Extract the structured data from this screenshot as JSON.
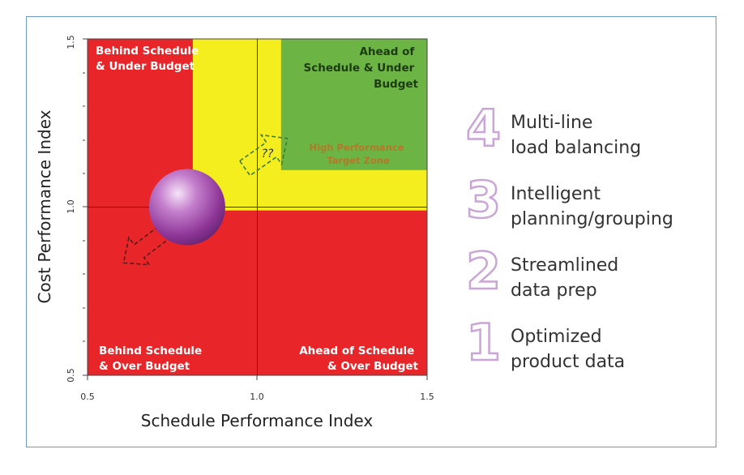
{
  "chart": {
    "type": "quadrant",
    "xlabel": "Schedule Performance Index",
    "ylabel": "Cost Performance Index",
    "xlim": [
      0.5,
      1.5
    ],
    "ylim": [
      0.5,
      1.5
    ],
    "x_ticks": [
      "0.5",
      "1.0",
      "1.5"
    ],
    "y_ticks": [
      "0.5",
      "1.0",
      "1.5"
    ],
    "zones": {
      "top_left": "Behind Schedule & Under Budget",
      "top_right": "Ahead of Schedule & Under Budget",
      "bottom_left": "Behind Schedule & Over Budget",
      "bottom_right": "Ahead of Schedule & Over Budget",
      "target": "High Performance Target Zone"
    },
    "arrow_label": "??",
    "colors": {
      "red": "#e8262a",
      "yellow": "#f5ee1f",
      "green": "#6cb544",
      "sphere": "#a94fb4"
    }
  },
  "chart_data": {
    "type": "quadrant",
    "xlabel": "Schedule Performance Index",
    "ylabel": "Cost Performance Index",
    "xlim": [
      0.5,
      1.5
    ],
    "ylim": [
      0.5,
      1.5
    ],
    "regions": [
      {
        "color": "yellow",
        "x": [
          0.81,
          1.5
        ],
        "y": [
          0.99,
          1.5
        ]
      },
      {
        "color": "green",
        "x": [
          1.07,
          1.5
        ],
        "y": [
          1.11,
          1.5
        ]
      }
    ],
    "point": {
      "x": 0.81,
      "y": 1.0
    }
  },
  "steps": [
    {
      "number": "4",
      "line1": "Multi-line",
      "line2": "load balancing"
    },
    {
      "number": "3",
      "line1": "Intelligent",
      "line2": "planning/grouping"
    },
    {
      "number": "2",
      "line1": "Streamlined",
      "line2": "data prep"
    },
    {
      "number": "1",
      "line1": "Optimized",
      "line2": "product data"
    }
  ]
}
